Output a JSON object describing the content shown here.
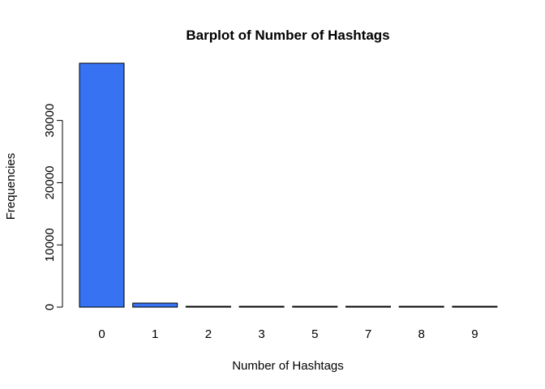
{
  "colors": {
    "bar_fill": "#3672F2",
    "stroke": "#000000",
    "background": "#FFFFFF"
  },
  "chart_data": {
    "type": "bar",
    "title": "Barplot of Number of Hashtags",
    "xlabel": "Number of Hashtags",
    "ylabel": "Frequencies",
    "categories": [
      "0",
      "1",
      "2",
      "3",
      "5",
      "7",
      "8",
      "9"
    ],
    "values": [
      39200,
      650,
      100,
      20,
      5,
      3,
      2,
      1
    ],
    "ylim": [
      0,
      39200
    ],
    "yticks": [
      0,
      10000,
      20000,
      30000
    ],
    "ytick_labels": [
      "0",
      "10000",
      "20000",
      "30000"
    ],
    "grid": false,
    "legend": "none"
  }
}
